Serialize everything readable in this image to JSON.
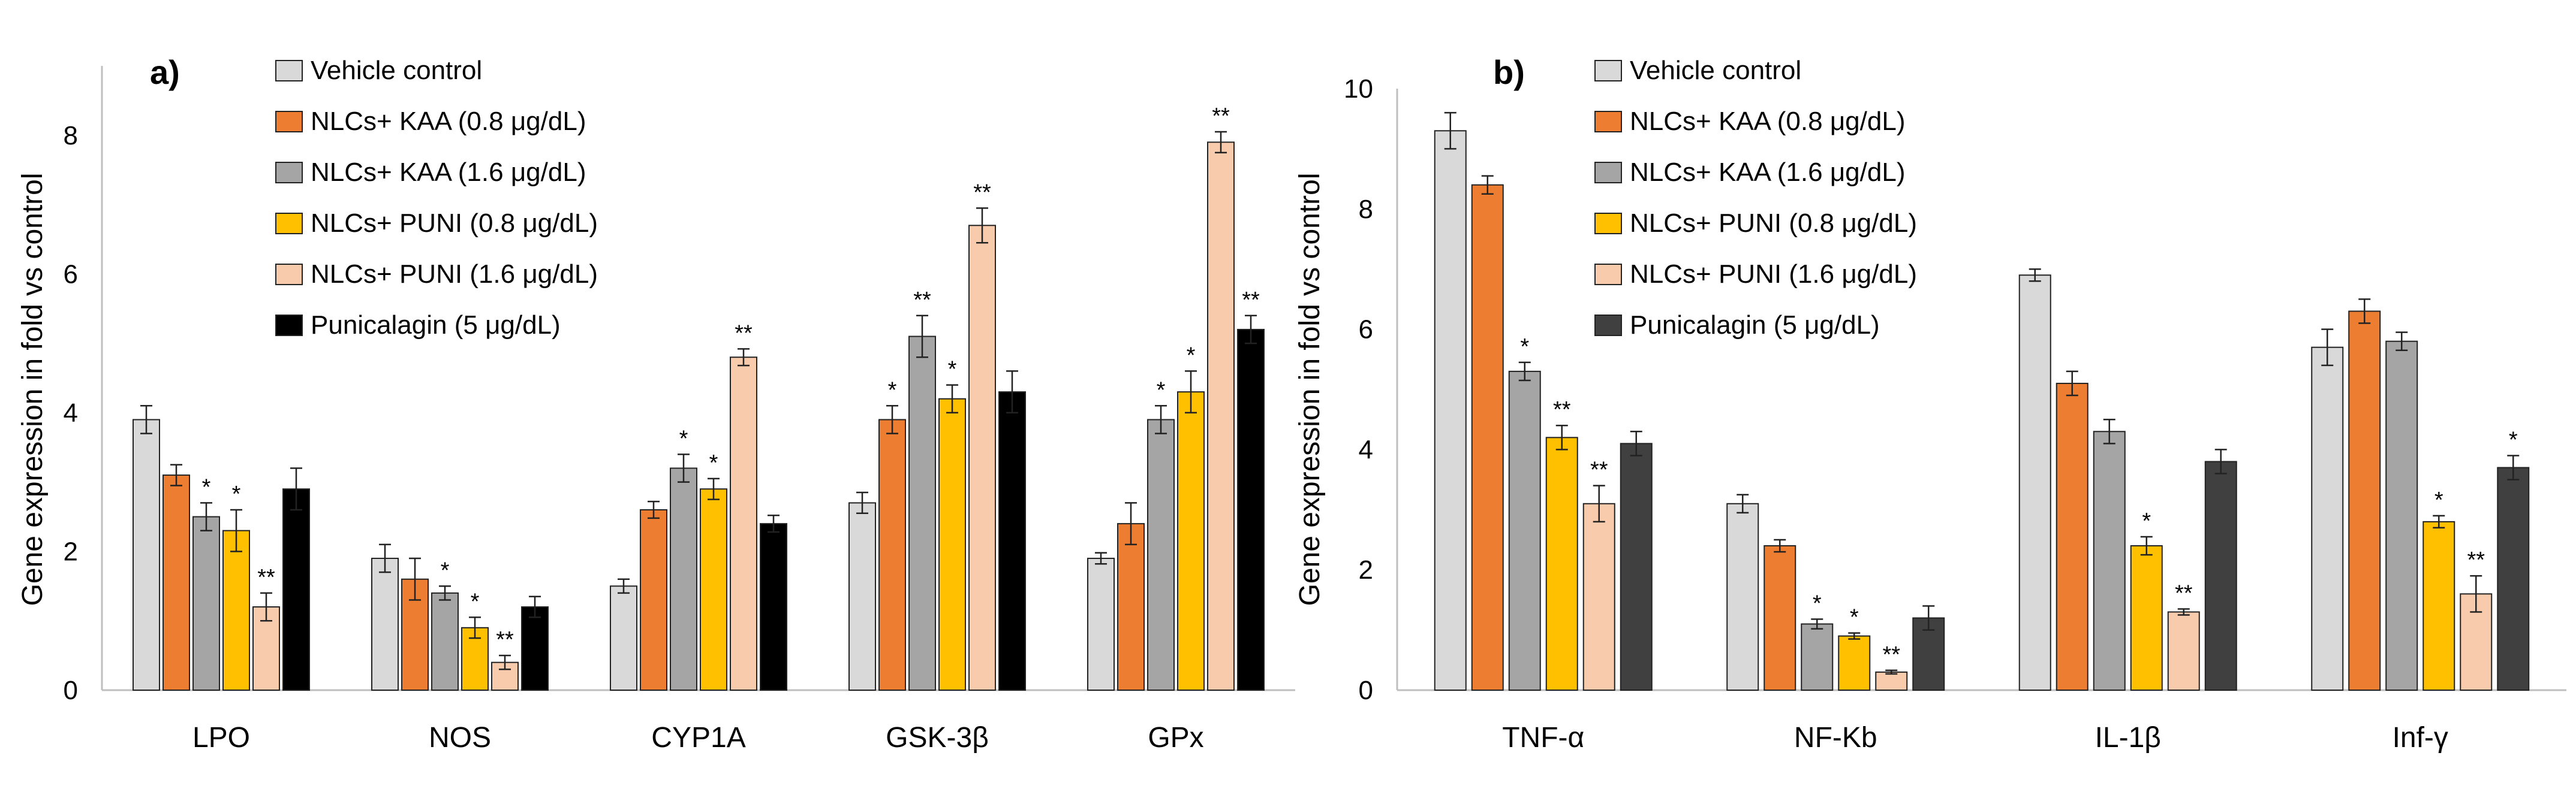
{
  "series_colors": [
    "#d9d9d9",
    "#ed7d31",
    "#a5a5a5",
    "#ffc000",
    "#f8cbad",
    "#000000"
  ],
  "chart_data": [
    {
      "type": "bar",
      "panel_label": "a)",
      "title": "",
      "xlabel": "",
      "ylabel": "Gene expression in fold vs control",
      "ylim": [
        0,
        9
      ],
      "yticks": [
        0,
        2,
        4,
        6,
        8
      ],
      "grid": false,
      "legend_position": "top-left",
      "categories": [
        "LPO",
        "NOS",
        "CYP1A",
        "GSK-3β",
        "GPx"
      ],
      "series": [
        {
          "name": "Vehicle control",
          "color": "#d9d9d9",
          "values": [
            3.9,
            1.9,
            1.5,
            2.7,
            1.9
          ],
          "errors": [
            0.2,
            0.2,
            0.1,
            0.15,
            0.08
          ],
          "sig": [
            "",
            "",
            "",
            "",
            ""
          ]
        },
        {
          "name": "NLCs+ KAA (0.8 μg/dL)",
          "color": "#ed7d31",
          "values": [
            3.1,
            1.6,
            2.6,
            3.9,
            2.4
          ],
          "errors": [
            0.15,
            0.3,
            0.12,
            0.2,
            0.3
          ],
          "sig": [
            "",
            "",
            "",
            "*",
            ""
          ]
        },
        {
          "name": "NLCs+ KAA (1.6 μg/dL)",
          "color": "#a5a5a5",
          "values": [
            2.5,
            1.4,
            3.2,
            5.1,
            3.9
          ],
          "errors": [
            0.2,
            0.1,
            0.2,
            0.3,
            0.2
          ],
          "sig": [
            "*",
            "*",
            "*",
            "**",
            "*"
          ]
        },
        {
          "name": "NLCs+ PUNI (0.8 μg/dL)",
          "color": "#ffc000",
          "values": [
            2.3,
            0.9,
            2.9,
            4.2,
            4.3
          ],
          "errors": [
            0.3,
            0.15,
            0.15,
            0.2,
            0.3
          ],
          "sig": [
            "*",
            "*",
            "*",
            "*",
            "*"
          ]
        },
        {
          "name": "NLCs+ PUNI (1.6 μg/dL)",
          "color": "#f8cbad",
          "values": [
            1.2,
            0.4,
            4.8,
            6.7,
            7.9
          ],
          "errors": [
            0.2,
            0.1,
            0.12,
            0.25,
            0.15
          ],
          "sig": [
            "**",
            "**",
            "**",
            "**",
            "**"
          ]
        },
        {
          "name": "Punicalagin (5 μg/dL)",
          "color": "#000000",
          "values": [
            2.9,
            1.2,
            2.4,
            4.3,
            5.2
          ],
          "errors": [
            0.3,
            0.15,
            0.12,
            0.3,
            0.2
          ],
          "sig": [
            "",
            "",
            "",
            "",
            "**"
          ]
        }
      ]
    },
    {
      "type": "bar",
      "panel_label": "b)",
      "title": "",
      "xlabel": "",
      "ylabel": "Gene expression in fold vs control",
      "ylim": [
        0,
        10
      ],
      "yticks": [
        0,
        2,
        4,
        6,
        8,
        10
      ],
      "grid": false,
      "legend_position": "top-left",
      "categories": [
        "TNF-α",
        "NF-Kb",
        "IL-1β",
        "Inf-γ"
      ],
      "series": [
        {
          "name": "Vehicle control",
          "color": "#d9d9d9",
          "values": [
            9.3,
            3.1,
            6.9,
            5.7
          ],
          "errors": [
            0.3,
            0.15,
            0.1,
            0.3
          ],
          "sig": [
            "",
            "",
            "",
            ""
          ]
        },
        {
          "name": "NLCs+ KAA (0.8 μg/dL)",
          "color": "#ed7d31",
          "values": [
            8.4,
            2.4,
            5.1,
            6.3
          ],
          "errors": [
            0.15,
            0.1,
            0.2,
            0.2
          ],
          "sig": [
            "",
            "",
            "",
            ""
          ]
        },
        {
          "name": "NLCs+ KAA (1.6 μg/dL)",
          "color": "#a5a5a5",
          "values": [
            5.3,
            1.1,
            4.3,
            5.8
          ],
          "errors": [
            0.15,
            0.08,
            0.2,
            0.15
          ],
          "sig": [
            "*",
            "*",
            "",
            ""
          ]
        },
        {
          "name": "NLCs+ PUNI (0.8 μg/dL)",
          "color": "#ffc000",
          "values": [
            4.2,
            0.9,
            2.4,
            2.8
          ],
          "errors": [
            0.2,
            0.05,
            0.15,
            0.1
          ],
          "sig": [
            "**",
            "*",
            "*",
            "*"
          ]
        },
        {
          "name": "NLCs+ PUNI (1.6 μg/dL)",
          "color": "#f8cbad",
          "values": [
            3.1,
            0.3,
            1.3,
            1.6
          ],
          "errors": [
            0.3,
            0.03,
            0.05,
            0.3
          ],
          "sig": [
            "**",
            "**",
            "**",
            "**"
          ]
        },
        {
          "name": "Punicalagin (5 μg/dL)",
          "color": "#404040",
          "values": [
            4.1,
            1.2,
            3.8,
            3.7
          ],
          "errors": [
            0.2,
            0.2,
            0.2,
            0.2
          ],
          "sig": [
            "",
            "",
            "",
            "*"
          ]
        }
      ]
    }
  ]
}
